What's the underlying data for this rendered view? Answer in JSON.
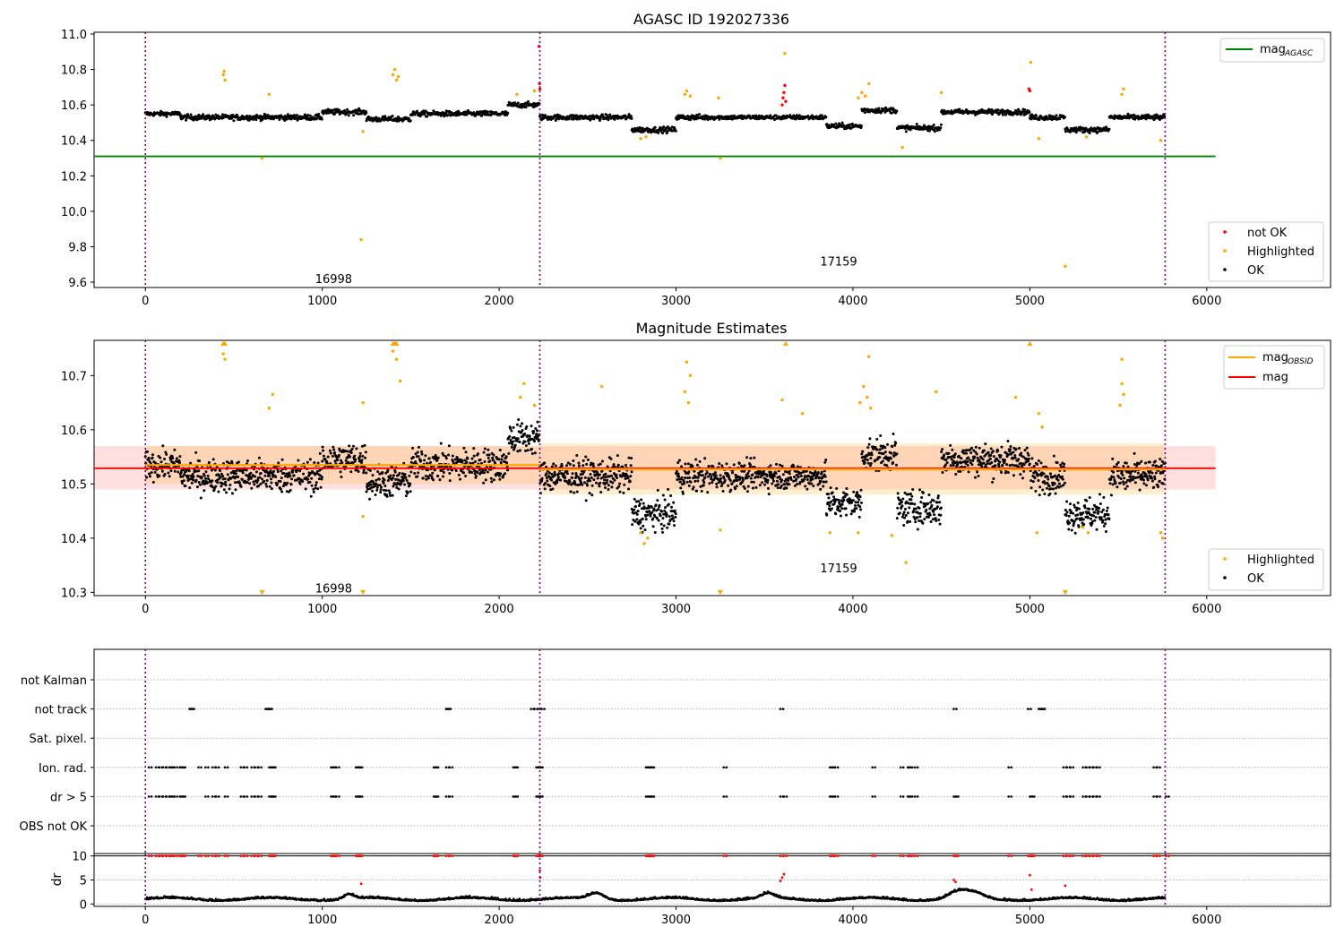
{
  "chart_data": [
    {
      "type": "scatter",
      "title": "AGASC ID 192027336",
      "xlim": [
        -290,
        6700
      ],
      "ylim": [
        9.57,
        11.01
      ],
      "xticks": [
        0,
        1000,
        2000,
        3000,
        4000,
        5000,
        6000
      ],
      "yticks": [
        9.6,
        9.8,
        10.0,
        10.2,
        10.4,
        10.6,
        10.8,
        11.0
      ],
      "vlines": [
        0,
        2230,
        5765
      ],
      "hlines": [
        {
          "name": "mag_AGASC",
          "y": 10.31,
          "x": [
            -290,
            6050
          ],
          "color": "#008000"
        }
      ],
      "obsid_labels": [
        {
          "text": "16998",
          "x": 1115,
          "y": 9.62
        },
        {
          "text": "17159",
          "x": 3970,
          "y": 9.72
        }
      ],
      "legend_lines": [
        {
          "name": "mag",
          "sub": "AGASC",
          "color": "#008000"
        }
      ],
      "legend_points": [
        {
          "name": "not OK",
          "color": "#ff0000"
        },
        {
          "name": "Highlighted",
          "color": "#ffa500"
        },
        {
          "name": "OK",
          "color": "#000000"
        }
      ],
      "segments": [
        {
          "x": [
            0,
            200
          ],
          "y": 10.55,
          "noise": 0.025
        },
        {
          "x": [
            200,
            1000
          ],
          "y": 10.53,
          "noise": 0.03
        },
        {
          "x": [
            1000,
            1250
          ],
          "y": 10.56,
          "noise": 0.03
        },
        {
          "x": [
            1250,
            1500
          ],
          "y": 10.52,
          "noise": 0.03
        },
        {
          "x": [
            1500,
            2050
          ],
          "y": 10.55,
          "noise": 0.03
        },
        {
          "x": [
            2050,
            2230
          ],
          "y": 10.6,
          "noise": 0.03
        },
        {
          "x": [
            2230,
            2750
          ],
          "y": 10.53,
          "noise": 0.03
        },
        {
          "x": [
            2750,
            3000
          ],
          "y": 10.46,
          "noise": 0.03
        },
        {
          "x": [
            3000,
            3200
          ],
          "y": 10.53,
          "noise": 0.03
        },
        {
          "x": [
            3200,
            3850
          ],
          "y": 10.53,
          "noise": 0.025
        },
        {
          "x": [
            3850,
            4050
          ],
          "y": 10.48,
          "noise": 0.03
        },
        {
          "x": [
            4050,
            4250
          ],
          "y": 10.57,
          "noise": 0.03
        },
        {
          "x": [
            4250,
            4500
          ],
          "y": 10.47,
          "noise": 0.03
        },
        {
          "x": [
            4500,
            5000
          ],
          "y": 10.56,
          "noise": 0.03
        },
        {
          "x": [
            5000,
            5200
          ],
          "y": 10.53,
          "noise": 0.03
        },
        {
          "x": [
            5200,
            5450
          ],
          "y": 10.46,
          "noise": 0.03
        },
        {
          "x": [
            5450,
            5765
          ],
          "y": 10.53,
          "noise": 0.03
        }
      ],
      "highlighted": [
        {
          "x": 440,
          "y": 10.77
        },
        {
          "x": 445,
          "y": 10.79
        },
        {
          "x": 450,
          "y": 10.74
        },
        {
          "x": 660,
          "y": 10.3
        },
        {
          "x": 700,
          "y": 10.66
        },
        {
          "x": 1220,
          "y": 9.84
        },
        {
          "x": 1230,
          "y": 10.45
        },
        {
          "x": 1400,
          "y": 10.77
        },
        {
          "x": 1410,
          "y": 10.8
        },
        {
          "x": 1420,
          "y": 10.74
        },
        {
          "x": 1430,
          "y": 10.76
        },
        {
          "x": 2100,
          "y": 10.66
        },
        {
          "x": 2200,
          "y": 10.68
        },
        {
          "x": 2800,
          "y": 10.41
        },
        {
          "x": 2830,
          "y": 10.42
        },
        {
          "x": 3050,
          "y": 10.66
        },
        {
          "x": 3060,
          "y": 10.68
        },
        {
          "x": 3080,
          "y": 10.65
        },
        {
          "x": 3250,
          "y": 10.3
        },
        {
          "x": 3240,
          "y": 10.64
        },
        {
          "x": 3615,
          "y": 10.89
        },
        {
          "x": 4030,
          "y": 10.64
        },
        {
          "x": 4050,
          "y": 10.67
        },
        {
          "x": 4070,
          "y": 10.65
        },
        {
          "x": 4090,
          "y": 10.72
        },
        {
          "x": 4280,
          "y": 10.36
        },
        {
          "x": 4500,
          "y": 10.67
        },
        {
          "x": 5005,
          "y": 10.84
        },
        {
          "x": 5050,
          "y": 10.41
        },
        {
          "x": 5200,
          "y": 9.69
        },
        {
          "x": 5320,
          "y": 10.42
        },
        {
          "x": 5520,
          "y": 10.66
        },
        {
          "x": 5530,
          "y": 10.69
        },
        {
          "x": 5740,
          "y": 10.4
        }
      ],
      "not_ok": [
        {
          "x": 2225,
          "y": 10.93
        },
        {
          "x": 2228,
          "y": 10.72
        },
        {
          "x": 2230,
          "y": 10.69
        },
        {
          "x": 3600,
          "y": 10.6
        },
        {
          "x": 3605,
          "y": 10.64
        },
        {
          "x": 3610,
          "y": 10.67
        },
        {
          "x": 3615,
          "y": 10.71
        },
        {
          "x": 3620,
          "y": 10.62
        },
        {
          "x": 4995,
          "y": 10.69
        },
        {
          "x": 5000,
          "y": 10.68
        }
      ]
    },
    {
      "type": "scatter",
      "title": "Magnitude Estimates",
      "xlim": [
        -290,
        6700
      ],
      "ylim": [
        10.294,
        10.765
      ],
      "xticks": [
        0,
        1000,
        2000,
        3000,
        4000,
        5000,
        6000
      ],
      "yticks": [
        10.3,
        10.4,
        10.5,
        10.6,
        10.7
      ],
      "vlines": [
        0,
        2230,
        5765
      ],
      "mag": {
        "value": 10.529,
        "band": [
          10.49,
          10.57
        ],
        "x": [
          -290,
          6050
        ],
        "color": "#ff0000"
      },
      "mag_obsid": [
        {
          "x": [
            0,
            2230
          ],
          "value": 10.535,
          "band": [
            10.5,
            10.57
          ]
        },
        {
          "x": [
            2230,
            5765
          ],
          "value": 10.527,
          "band": [
            10.48,
            10.575
          ]
        }
      ],
      "obsid_labels": [
        {
          "text": "16998",
          "x": 1115,
          "y": 10.308
        },
        {
          "text": "17159",
          "x": 3970,
          "y": 10.345
        }
      ],
      "legend_lines": [
        {
          "name": "mag",
          "sub": "OBSID",
          "color": "#ffa500"
        },
        {
          "name": "mag",
          "sub": "",
          "color": "#ff0000"
        }
      ],
      "legend_points": [
        {
          "name": "Highlighted",
          "color": "#ffa500"
        },
        {
          "name": "OK",
          "color": "#000000"
        }
      ],
      "highlighted": [
        {
          "x": 440,
          "y": 10.74
        },
        {
          "x": 445,
          "y": 10.76
        },
        {
          "x": 450,
          "y": 10.73
        },
        {
          "x": 700,
          "y": 10.64
        },
        {
          "x": 720,
          "y": 10.665
        },
        {
          "x": 1230,
          "y": 10.44
        },
        {
          "x": 1230,
          "y": 10.65
        },
        {
          "x": 1400,
          "y": 10.745
        },
        {
          "x": 1410,
          "y": 10.76
        },
        {
          "x": 1420,
          "y": 10.73
        },
        {
          "x": 1440,
          "y": 10.69
        },
        {
          "x": 2120,
          "y": 10.66
        },
        {
          "x": 2140,
          "y": 10.685
        },
        {
          "x": 2200,
          "y": 10.645
        },
        {
          "x": 2580,
          "y": 10.68
        },
        {
          "x": 2800,
          "y": 10.41
        },
        {
          "x": 2820,
          "y": 10.39
        },
        {
          "x": 2840,
          "y": 10.4
        },
        {
          "x": 3050,
          "y": 10.67
        },
        {
          "x": 3060,
          "y": 10.725
        },
        {
          "x": 3070,
          "y": 10.65
        },
        {
          "x": 3080,
          "y": 10.7
        },
        {
          "x": 3250,
          "y": 10.415
        },
        {
          "x": 3600,
          "y": 10.655
        },
        {
          "x": 3715,
          "y": 10.63
        },
        {
          "x": 3870,
          "y": 10.41
        },
        {
          "x": 4030,
          "y": 10.41
        },
        {
          "x": 4040,
          "y": 10.65
        },
        {
          "x": 4060,
          "y": 10.68
        },
        {
          "x": 4080,
          "y": 10.66
        },
        {
          "x": 4090,
          "y": 10.735
        },
        {
          "x": 4100,
          "y": 10.64
        },
        {
          "x": 4220,
          "y": 10.405
        },
        {
          "x": 4300,
          "y": 10.355
        },
        {
          "x": 4470,
          "y": 10.67
        },
        {
          "x": 4920,
          "y": 10.66
        },
        {
          "x": 5040,
          "y": 10.41
        },
        {
          "x": 5050,
          "y": 10.63
        },
        {
          "x": 5070,
          "y": 10.605
        },
        {
          "x": 5300,
          "y": 10.42
        },
        {
          "x": 5330,
          "y": 10.41
        },
        {
          "x": 5510,
          "y": 10.645
        },
        {
          "x": 5520,
          "y": 10.685
        },
        {
          "x": 5530,
          "y": 10.665
        },
        {
          "x": 5520,
          "y": 10.73
        },
        {
          "x": 5740,
          "y": 10.41
        },
        {
          "x": 5750,
          "y": 10.4
        }
      ],
      "clipped": [
        {
          "x": 440,
          "dir": "up"
        },
        {
          "x": 450,
          "dir": "up"
        },
        {
          "x": 1400,
          "dir": "up"
        },
        {
          "x": 1420,
          "dir": "up"
        },
        {
          "x": 3620,
          "dir": "up"
        },
        {
          "x": 5000,
          "dir": "up"
        },
        {
          "x": 660,
          "dir": "down"
        },
        {
          "x": 1230,
          "dir": "down"
        },
        {
          "x": 3250,
          "dir": "down"
        },
        {
          "x": 5200,
          "dir": "down"
        }
      ]
    },
    {
      "type": "scatter",
      "title": "",
      "xlim": [
        -290,
        6700
      ],
      "xticks": [
        0,
        1000,
        2000,
        3000,
        4000,
        5000,
        6000
      ],
      "vlines": [
        0,
        2230,
        5765
      ],
      "flag_rows": [
        "not Kalman",
        "not track",
        "Sat. pixel.",
        "Ion. rad.",
        "dr > 5",
        "OBS not OK"
      ],
      "flag_points": {
        "not track": [
          250,
          260,
          680,
          690,
          700,
          1700,
          1710,
          2180,
          2200,
          2220,
          2240,
          3590,
          4570,
          4990,
          5050,
          5060,
          5070
        ],
        "Ion. rad.": [
          20,
          60,
          80,
          100,
          120,
          140,
          150,
          180,
          200,
          210,
          300,
          340,
          380,
          400,
          450,
          540,
          560,
          600,
          620,
          640,
          700,
          710,
          720,
          1050,
          1060,
          1080,
          1190,
          1200,
          1210,
          1630,
          1640,
          1700,
          1720,
          2080,
          2090,
          2210,
          2220,
          2230,
          2830,
          2840,
          2850,
          2860,
          3270,
          3870,
          3880,
          3900,
          4110,
          4270,
          4310,
          4320,
          4350,
          4880,
          5190,
          5210,
          5230,
          5300,
          5320,
          5340,
          5360,
          5380,
          5700,
          5720
        ],
        "dr > 5": [
          20,
          60,
          80,
          100,
          120,
          140,
          150,
          180,
          200,
          210,
          340,
          380,
          400,
          450,
          540,
          560,
          600,
          620,
          640,
          700,
          710,
          720,
          1050,
          1060,
          1080,
          1190,
          1200,
          1210,
          1630,
          1640,
          1700,
          1720,
          2080,
          2090,
          2210,
          2220,
          2230,
          2830,
          2840,
          2850,
          2860,
          3270,
          3590,
          3610,
          3870,
          3880,
          3900,
          4110,
          4270,
          4310,
          4320,
          4350,
          4570,
          4580,
          4880,
          5000,
          5010,
          5190,
          5210,
          5230,
          5300,
          5320,
          5340,
          5360,
          5380,
          5700,
          5720,
          5770
        ]
      }
    },
    {
      "type": "scatter",
      "ylabel": "dr",
      "xlim": [
        -290,
        6700
      ],
      "ylim": [
        -0.5,
        10.5
      ],
      "xticks": [
        0,
        1000,
        2000,
        3000,
        4000,
        5000,
        6000
      ],
      "xticklabels": [
        "0",
        "1000",
        "2000",
        "3000",
        "4000",
        "5000",
        "6000"
      ],
      "yticks": [
        0,
        5,
        10
      ],
      "vlines": [
        0,
        2230,
        5765
      ],
      "hline": 10,
      "dr_red_x": [
        20,
        60,
        80,
        100,
        120,
        140,
        150,
        180,
        200,
        210,
        300,
        340,
        380,
        400,
        450,
        540,
        560,
        600,
        620,
        640,
        700,
        710,
        720,
        1050,
        1060,
        1080,
        1190,
        1200,
        1210,
        1630,
        1640,
        1700,
        1720,
        2080,
        2090,
        2210,
        2220,
        2230,
        2830,
        2840,
        2850,
        2860,
        3270,
        3590,
        3610,
        3870,
        3880,
        3900,
        4110,
        4270,
        4310,
        4320,
        4350,
        4570,
        4580,
        4880,
        4990,
        5000,
        5010,
        5190,
        5210,
        5230,
        5300,
        5320,
        5340,
        5360,
        5380,
        5700,
        5720,
        5770
      ],
      "dr_red_mid": [
        {
          "x": 2230,
          "y": 7
        },
        {
          "x": 2232,
          "y": 5.5
        },
        {
          "x": 3590,
          "y": 4.8
        },
        {
          "x": 3600,
          "y": 5.5
        },
        {
          "x": 3610,
          "y": 6.2
        },
        {
          "x": 4570,
          "y": 5
        },
        {
          "x": 4580,
          "y": 4.6
        },
        {
          "x": 5000,
          "y": 6
        },
        {
          "x": 1220,
          "y": 4.2
        },
        {
          "x": 5200,
          "y": 3.8
        },
        {
          "x": 5010,
          "y": 3
        }
      ],
      "dr_bumps": [
        {
          "x": 1150,
          "amp": 1.0,
          "w": 40
        },
        {
          "x": 2550,
          "amp": 1.3,
          "w": 60
        },
        {
          "x": 3520,
          "amp": 1.0,
          "w": 50
        },
        {
          "x": 4600,
          "amp": 1.6,
          "w": 80
        },
        {
          "x": 4700,
          "amp": 0.9,
          "w": 60
        }
      ]
    }
  ]
}
